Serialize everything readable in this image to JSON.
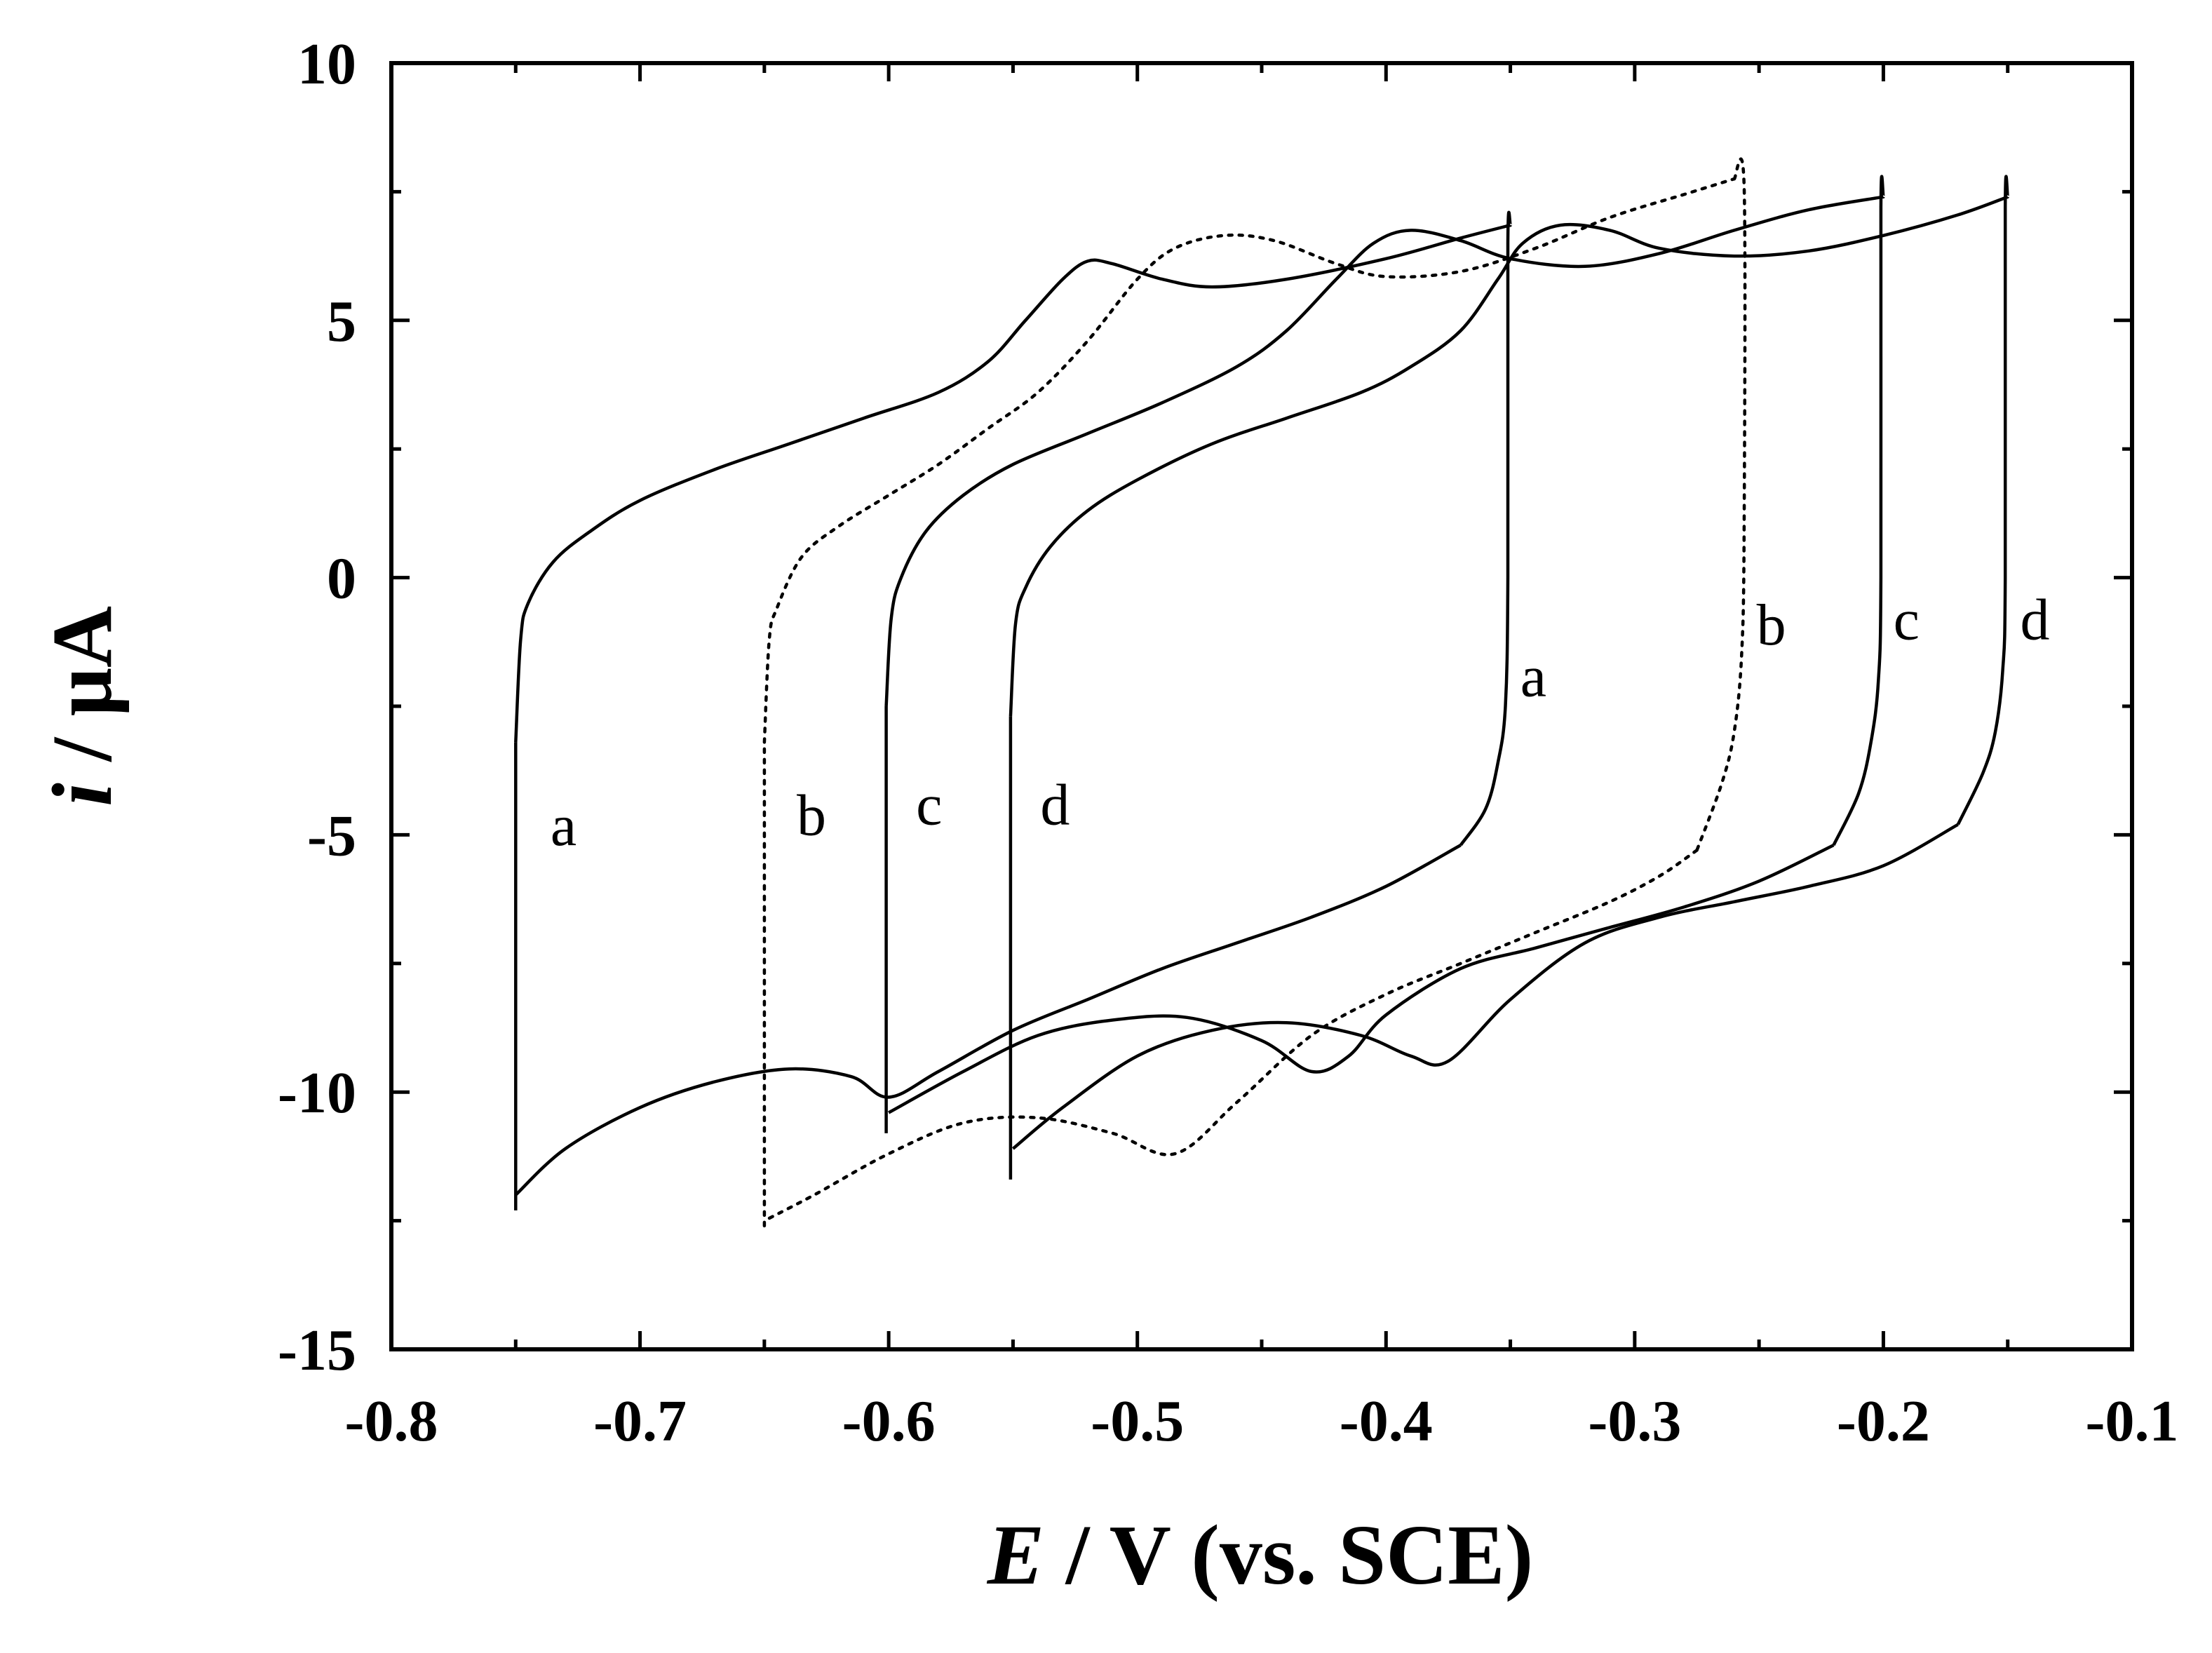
{
  "chart_data": {
    "type": "line",
    "title": "",
    "xlabel_var": "E",
    "xlabel_rest": " / V (vs. SCE)",
    "ylabel_var": "i",
    "ylabel_rest": " / μA",
    "xlim": [
      -0.8,
      -0.1
    ],
    "ylim": [
      -15,
      10
    ],
    "x_ticks": [
      -0.8,
      -0.7,
      -0.6,
      -0.5,
      -0.4,
      -0.3,
      -0.2,
      -0.1
    ],
    "x_tick_labels": [
      "-0.8",
      "-0.7",
      "-0.6",
      "-0.5",
      "-0.4",
      "-0.3",
      "-0.2",
      "-0.1"
    ],
    "y_ticks": [
      -15,
      -10,
      -5,
      0,
      5,
      10
    ],
    "y_tick_labels": [
      "-15",
      "-10",
      "-5",
      "0",
      "5",
      "10"
    ],
    "series": [
      {
        "name": "a",
        "style": "solid",
        "forward": [
          [
            -0.75,
            -3.2
          ],
          [
            -0.748,
            -1.2
          ],
          [
            -0.745,
            -0.5
          ],
          [
            -0.735,
            0.3
          ],
          [
            -0.72,
            0.9
          ],
          [
            -0.7,
            1.5
          ],
          [
            -0.67,
            2.1
          ],
          [
            -0.64,
            2.6
          ],
          [
            -0.61,
            3.1
          ],
          [
            -0.58,
            3.6
          ],
          [
            -0.56,
            4.2
          ],
          [
            -0.545,
            5.0
          ],
          [
            -0.53,
            5.8
          ],
          [
            -0.52,
            6.15
          ],
          [
            -0.51,
            6.1
          ],
          [
            -0.49,
            5.8
          ],
          [
            -0.47,
            5.65
          ],
          [
            -0.44,
            5.8
          ],
          [
            -0.4,
            6.2
          ],
          [
            -0.37,
            6.6
          ],
          [
            -0.35,
            6.85
          ]
        ],
        "switch": [
          [
            -0.35,
            6.85
          ],
          [
            -0.351,
            6.5
          ],
          [
            -0.351,
            0.0
          ],
          [
            -0.352,
            -2.5
          ],
          [
            -0.355,
            -3.6
          ],
          [
            -0.36,
            -4.5
          ],
          [
            -0.37,
            -5.2
          ]
        ],
        "reverse": [
          [
            -0.37,
            -5.2
          ],
          [
            -0.4,
            -6.0
          ],
          [
            -0.43,
            -6.6
          ],
          [
            -0.46,
            -7.1
          ],
          [
            -0.49,
            -7.6
          ],
          [
            -0.52,
            -8.2
          ],
          [
            -0.55,
            -8.8
          ],
          [
            -0.58,
            -9.6
          ],
          [
            -0.6,
            -10.1
          ],
          [
            -0.615,
            -9.7
          ],
          [
            -0.64,
            -9.55
          ],
          [
            -0.67,
            -9.8
          ],
          [
            -0.7,
            -10.3
          ],
          [
            -0.73,
            -11.1
          ],
          [
            -0.75,
            -12.0
          ]
        ],
        "drop": [
          [
            -0.75,
            -12.3
          ],
          [
            -0.75,
            -3.2
          ]
        ],
        "label_left": {
          "x": -0.736,
          "y": -5.2,
          "text": "a"
        },
        "label_right": {
          "x": -0.346,
          "y": -2.3,
          "text": "a"
        }
      },
      {
        "name": "b",
        "style": "dotted",
        "forward": [
          [
            -0.65,
            -3.2
          ],
          [
            -0.648,
            -1.2
          ],
          [
            -0.645,
            -0.6
          ],
          [
            -0.635,
            0.4
          ],
          [
            -0.62,
            1.0
          ],
          [
            -0.6,
            1.6
          ],
          [
            -0.58,
            2.2
          ],
          [
            -0.56,
            2.9
          ],
          [
            -0.54,
            3.6
          ],
          [
            -0.52,
            4.6
          ],
          [
            -0.5,
            5.8
          ],
          [
            -0.485,
            6.4
          ],
          [
            -0.465,
            6.65
          ],
          [
            -0.445,
            6.55
          ],
          [
            -0.42,
            6.1
          ],
          [
            -0.4,
            5.85
          ],
          [
            -0.37,
            5.95
          ],
          [
            -0.34,
            6.4
          ],
          [
            -0.31,
            7.0
          ],
          [
            -0.28,
            7.45
          ],
          [
            -0.26,
            7.75
          ]
        ],
        "switch": [
          [
            -0.26,
            7.75
          ],
          [
            -0.256,
            7.6
          ],
          [
            -0.256,
            1.0
          ],
          [
            -0.257,
            -1.5
          ],
          [
            -0.26,
            -3.0
          ],
          [
            -0.265,
            -4.0
          ],
          [
            -0.275,
            -5.3
          ]
        ],
        "reverse": [
          [
            -0.275,
            -5.3
          ],
          [
            -0.29,
            -5.8
          ],
          [
            -0.31,
            -6.3
          ],
          [
            -0.34,
            -6.9
          ],
          [
            -0.37,
            -7.5
          ],
          [
            -0.4,
            -8.1
          ],
          [
            -0.43,
            -8.9
          ],
          [
            -0.46,
            -10.2
          ],
          [
            -0.485,
            -11.2
          ],
          [
            -0.51,
            -10.8
          ],
          [
            -0.54,
            -10.5
          ],
          [
            -0.57,
            -10.6
          ],
          [
            -0.6,
            -11.2
          ],
          [
            -0.63,
            -12.0
          ],
          [
            -0.65,
            -12.5
          ]
        ],
        "drop": [
          [
            -0.65,
            -12.6
          ],
          [
            -0.65,
            -3.2
          ]
        ],
        "label_left": {
          "x": -0.637,
          "y": -5.0,
          "text": "b"
        },
        "label_right": {
          "x": -0.251,
          "y": -1.3,
          "text": "b"
        }
      },
      {
        "name": "c",
        "style": "solid",
        "forward": [
          [
            -0.601,
            -2.5
          ],
          [
            -0.599,
            -0.8
          ],
          [
            -0.595,
            0.0
          ],
          [
            -0.585,
            0.9
          ],
          [
            -0.57,
            1.6
          ],
          [
            -0.55,
            2.2
          ],
          [
            -0.52,
            2.8
          ],
          [
            -0.49,
            3.4
          ],
          [
            -0.46,
            4.1
          ],
          [
            -0.44,
            4.8
          ],
          [
            -0.42,
            5.8
          ],
          [
            -0.405,
            6.5
          ],
          [
            -0.39,
            6.75
          ],
          [
            -0.37,
            6.55
          ],
          [
            -0.35,
            6.2
          ],
          [
            -0.32,
            6.05
          ],
          [
            -0.29,
            6.3
          ],
          [
            -0.26,
            6.75
          ],
          [
            -0.23,
            7.15
          ],
          [
            -0.2,
            7.4
          ]
        ],
        "switch": [
          [
            -0.2,
            7.4
          ],
          [
            -0.201,
            7.2
          ],
          [
            -0.201,
            0.0
          ],
          [
            -0.202,
            -2.0
          ],
          [
            -0.205,
            -3.2
          ],
          [
            -0.21,
            -4.2
          ],
          [
            -0.22,
            -5.2
          ]
        ],
        "reverse": [
          [
            -0.22,
            -5.2
          ],
          [
            -0.25,
            -5.9
          ],
          [
            -0.28,
            -6.4
          ],
          [
            -0.31,
            -6.8
          ],
          [
            -0.34,
            -7.2
          ],
          [
            -0.37,
            -7.6
          ],
          [
            -0.4,
            -8.5
          ],
          [
            -0.415,
            -9.3
          ],
          [
            -0.43,
            -9.6
          ],
          [
            -0.45,
            -9.0
          ],
          [
            -0.48,
            -8.55
          ],
          [
            -0.51,
            -8.6
          ],
          [
            -0.54,
            -8.9
          ],
          [
            -0.57,
            -9.6
          ],
          [
            -0.6,
            -10.4
          ]
        ],
        "drop": [
          [
            -0.601,
            -10.8
          ],
          [
            -0.601,
            -2.5
          ]
        ],
        "label_left": {
          "x": -0.589,
          "y": -4.8,
          "text": "c"
        },
        "label_right": {
          "x": -0.196,
          "y": -1.2,
          "text": "c"
        }
      },
      {
        "name": "d",
        "style": "solid",
        "forward": [
          [
            -0.551,
            -2.7
          ],
          [
            -0.549,
            -0.9
          ],
          [
            -0.545,
            -0.2
          ],
          [
            -0.535,
            0.6
          ],
          [
            -0.52,
            1.3
          ],
          [
            -0.5,
            1.9
          ],
          [
            -0.47,
            2.6
          ],
          [
            -0.44,
            3.1
          ],
          [
            -0.41,
            3.6
          ],
          [
            -0.39,
            4.1
          ],
          [
            -0.37,
            4.8
          ],
          [
            -0.355,
            5.8
          ],
          [
            -0.345,
            6.5
          ],
          [
            -0.33,
            6.85
          ],
          [
            -0.31,
            6.75
          ],
          [
            -0.29,
            6.4
          ],
          [
            -0.26,
            6.25
          ],
          [
            -0.23,
            6.35
          ],
          [
            -0.2,
            6.65
          ],
          [
            -0.17,
            7.05
          ],
          [
            -0.15,
            7.4
          ]
        ],
        "switch": [
          [
            -0.15,
            7.4
          ],
          [
            -0.151,
            7.2
          ],
          [
            -0.151,
            0.0
          ],
          [
            -0.152,
            -1.8
          ],
          [
            -0.155,
            -3.0
          ],
          [
            -0.16,
            -3.8
          ],
          [
            -0.17,
            -4.8
          ]
        ],
        "reverse": [
          [
            -0.17,
            -4.8
          ],
          [
            -0.2,
            -5.6
          ],
          [
            -0.23,
            -6.0
          ],
          [
            -0.26,
            -6.3
          ],
          [
            -0.29,
            -6.6
          ],
          [
            -0.32,
            -7.1
          ],
          [
            -0.35,
            -8.2
          ],
          [
            -0.375,
            -9.4
          ],
          [
            -0.39,
            -9.3
          ],
          [
            -0.41,
            -8.9
          ],
          [
            -0.44,
            -8.65
          ],
          [
            -0.47,
            -8.8
          ],
          [
            -0.5,
            -9.3
          ],
          [
            -0.53,
            -10.3
          ],
          [
            -0.55,
            -11.1
          ]
        ],
        "drop": [
          [
            -0.551,
            -11.7
          ],
          [
            -0.551,
            -2.7
          ]
        ],
        "label_left": {
          "x": -0.539,
          "y": -4.8,
          "text": "d"
        },
        "label_right": {
          "x": -0.145,
          "y": -1.2,
          "text": "d"
        }
      }
    ]
  }
}
